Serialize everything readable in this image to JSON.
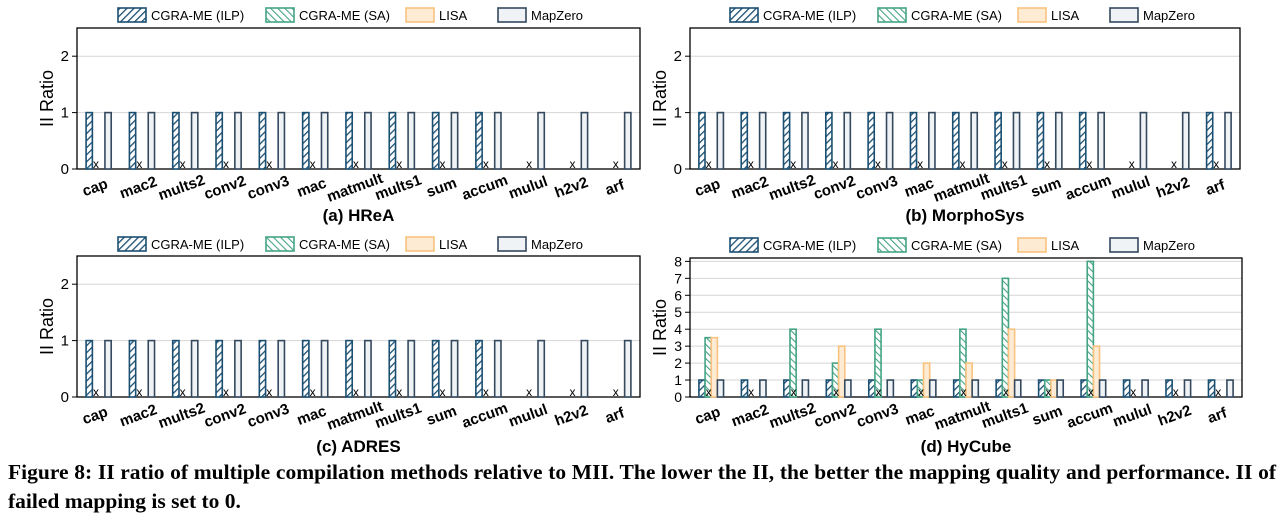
{
  "colors": {
    "ilp": "#1b4f72",
    "sa": "#45a385",
    "lisa": "#f9c27f",
    "mapzero": "#34495e",
    "lisa_fill": "#fdebd3",
    "mapzero_fill": "#f0f3f6",
    "grid": "#d5d5d5"
  },
  "chart_data": [
    {
      "type": "bar",
      "title": "(a) HReA",
      "ylabel": "II Ratio",
      "ylim": [
        0,
        2.5
      ],
      "yticks": [
        0,
        1,
        2
      ],
      "categories": [
        "cap",
        "mac2",
        "mults2",
        "conv2",
        "conv3",
        "mac",
        "matmult",
        "mults1",
        "sum",
        "accum",
        "mulul",
        "h2v2",
        "arf"
      ],
      "series": [
        {
          "name": "CGRA-ME (ILP)",
          "values": [
            1,
            1,
            1,
            1,
            1,
            1,
            1,
            1,
            1,
            1,
            0,
            0,
            0
          ]
        },
        {
          "name": "CGRA-ME (SA)",
          "values": [
            0,
            0,
            0,
            0,
            0,
            0,
            0,
            0,
            0,
            0,
            0,
            0,
            0
          ]
        },
        {
          "name": "LISA",
          "values": [
            0,
            0,
            0,
            0,
            0,
            0,
            0,
            0,
            0,
            0,
            0,
            0,
            0
          ]
        },
        {
          "name": "MapZero",
          "values": [
            1,
            1,
            1,
            1,
            1,
            1,
            1,
            1,
            1,
            1,
            1,
            1,
            1
          ]
        }
      ],
      "failed_marker": "x"
    },
    {
      "type": "bar",
      "title": "(b) MorphoSys",
      "ylabel": "II Ratio",
      "ylim": [
        0,
        2.5
      ],
      "yticks": [
        0,
        1,
        2
      ],
      "categories": [
        "cap",
        "mac2",
        "mults2",
        "conv2",
        "conv3",
        "mac",
        "matmult",
        "mults1",
        "sum",
        "accum",
        "mulul",
        "h2v2",
        "arf"
      ],
      "series": [
        {
          "name": "CGRA-ME (ILP)",
          "values": [
            1,
            1,
            1,
            1,
            1,
            1,
            1,
            1,
            1,
            1,
            0,
            0,
            1
          ]
        },
        {
          "name": "CGRA-ME (SA)",
          "values": [
            0,
            0,
            0,
            0,
            0,
            0,
            0,
            0,
            0,
            0,
            0,
            0,
            0
          ]
        },
        {
          "name": "LISA",
          "values": [
            0,
            0,
            0,
            0,
            0,
            0,
            0,
            0,
            0,
            0,
            0,
            0,
            0
          ]
        },
        {
          "name": "MapZero",
          "values": [
            1,
            1,
            1,
            1,
            1,
            1,
            1,
            1,
            1,
            1,
            1,
            1,
            1
          ]
        }
      ],
      "failed_marker": "x"
    },
    {
      "type": "bar",
      "title": "(c) ADRES",
      "ylabel": "II Ratio",
      "ylim": [
        0,
        2.5
      ],
      "yticks": [
        0,
        1,
        2
      ],
      "categories": [
        "cap",
        "mac2",
        "mults2",
        "conv2",
        "conv3",
        "mac",
        "matmult",
        "mults1",
        "sum",
        "accum",
        "mulul",
        "h2v2",
        "arf"
      ],
      "series": [
        {
          "name": "CGRA-ME (ILP)",
          "values": [
            1,
            1,
            1,
            1,
            1,
            1,
            1,
            1,
            1,
            1,
            0,
            0,
            0
          ]
        },
        {
          "name": "CGRA-ME (SA)",
          "values": [
            0,
            0,
            0,
            0,
            0,
            0,
            0,
            0,
            0,
            0,
            0,
            0,
            0
          ]
        },
        {
          "name": "LISA",
          "values": [
            0,
            0,
            0,
            0,
            0,
            0,
            0,
            0,
            0,
            0,
            0,
            0,
            0
          ]
        },
        {
          "name": "MapZero",
          "values": [
            1,
            1,
            1,
            1,
            1,
            1,
            1,
            1,
            1,
            1,
            1,
            1,
            1
          ]
        }
      ],
      "failed_marker": "x"
    },
    {
      "type": "bar",
      "title": "(d) HyCube",
      "ylabel": "II Ratio",
      "ylim": [
        0,
        8.2
      ],
      "yticks": [
        0,
        1,
        2,
        3,
        4,
        5,
        6,
        7,
        8
      ],
      "categories": [
        "cap",
        "mac2",
        "mults2",
        "conv2",
        "conv3",
        "mac",
        "matmult",
        "mults1",
        "sum",
        "accum",
        "mulul",
        "h2v2",
        "arf"
      ],
      "series": [
        {
          "name": "CGRA-ME (ILP)",
          "values": [
            1,
            1,
            1,
            1,
            1,
            1,
            1,
            1,
            1,
            1,
            1,
            1,
            1
          ]
        },
        {
          "name": "CGRA-ME (SA)",
          "values": [
            3.5,
            0,
            4,
            2,
            4,
            1,
            4,
            7,
            1,
            8,
            0,
            0,
            0
          ]
        },
        {
          "name": "LISA",
          "values": [
            3.5,
            0,
            0,
            3,
            0,
            2,
            2,
            4,
            1,
            3,
            0,
            0,
            0
          ]
        },
        {
          "name": "MapZero",
          "values": [
            1,
            1,
            1,
            1,
            1,
            1,
            1,
            1,
            1,
            1,
            1,
            1,
            1
          ]
        }
      ],
      "failed_marker": "x"
    }
  ],
  "caption": {
    "label": "Figure 8:",
    "text": "II ratio of multiple compilation methods relative to MII. The lower the II, the better the mapping quality and performance. II of failed mapping is set to 0."
  }
}
